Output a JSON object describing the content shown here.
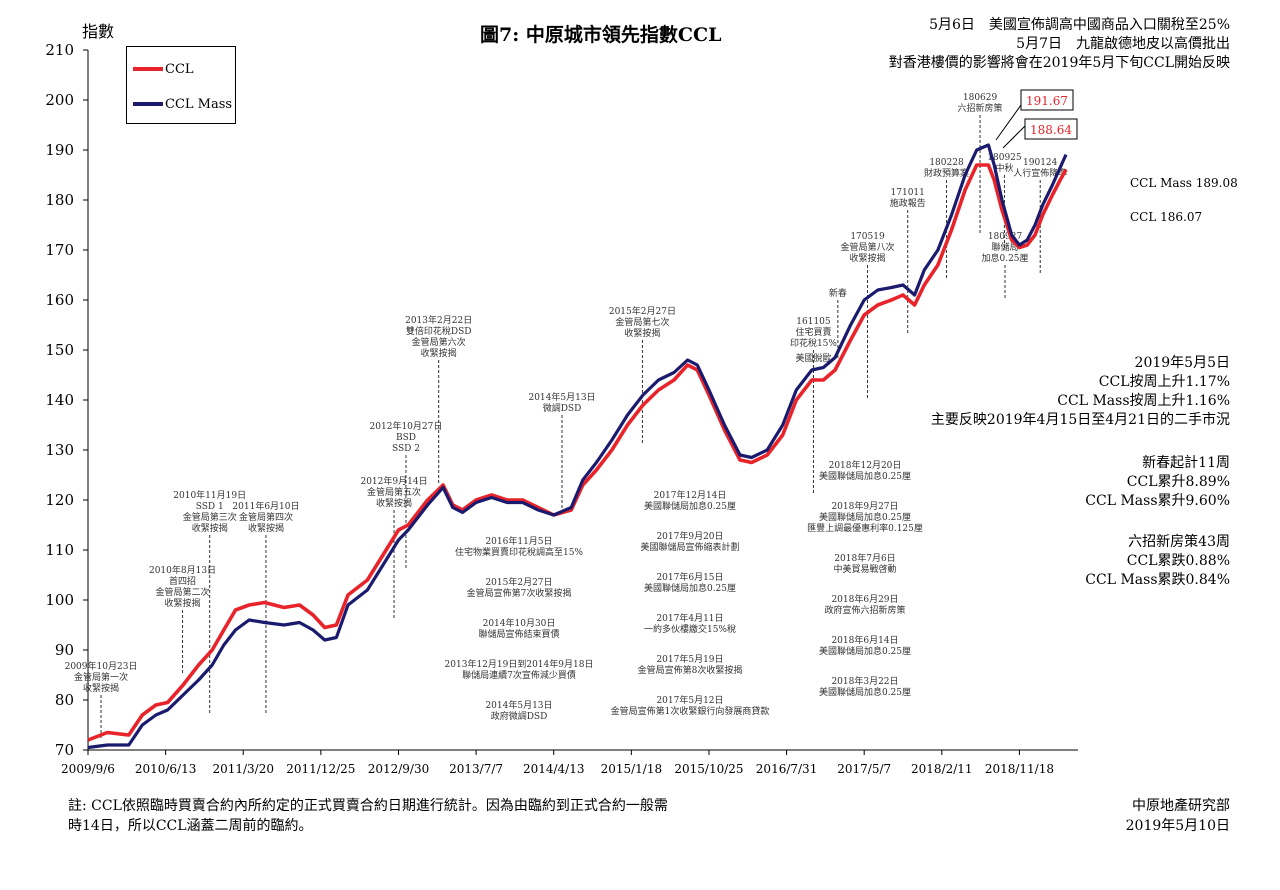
{
  "header": {
    "y_unit": "指數",
    "title": "圖7: 中原城市領先指數CCL",
    "note_lines": [
      "5月6日　美國宣佈調高中國商品入口關稅至25%",
      "5月7日　九龍啟德地皮以高價批出",
      "對香港樓價的影響將會在2019年5月下旬CCL開始反映"
    ]
  },
  "colors": {
    "ccl": "#e8232a",
    "ccl_mass": "#1a1a6e",
    "axis": "#000000",
    "annotation": "#333333"
  },
  "end_values": {
    "ccl_mass": "CCL Mass 189.08",
    "ccl": "CCL 186.07"
  },
  "peak_callouts": [
    "191.67",
    "188.64"
  ],
  "weekly_stats": [
    "2019年5月5日",
    "CCL按周上升1.17%",
    "CCL Mass按周上升1.16%",
    "主要反映2019年4月15日至4月21日的二手市況"
  ],
  "ytd_stats": [
    "新春起計11周",
    "CCL累升8.89%",
    "CCL Mass累升9.60%"
  ],
  "policy_stats": [
    "六招新房策43周",
    "CCL累跌0.88%",
    "CCL Mass累跌0.84%"
  ],
  "footnote": [
    "註: CCL依照臨時買賣合約內所約定的正式買賣合約日期進行統計。因為由臨約到正式合約一般需",
    "時14日，所以CCL涵蓋二周前的臨約。"
  ],
  "source": [
    "中原地產研究部",
    "2019年5月10日"
  ],
  "annotations": [
    {
      "x": "2009-10-23",
      "y_hi": 81,
      "y_lo": 72,
      "lines": [
        "2009年10月23日",
        "金管局第一次",
        "收緊按揭"
      ]
    },
    {
      "x": "2010-08-13",
      "y_hi": 98,
      "y_lo": 85,
      "lines": [
        "2010年8月13日",
        "首四招",
        "金管局第二次",
        "收緊按揭"
      ]
    },
    {
      "x": "2010-11-19",
      "y_hi": 113,
      "y_lo": 77,
      "lines": [
        "2010年11月19日",
        "SSD 1",
        "金管局第三次",
        "收緊按揭"
      ]
    },
    {
      "x": "2011-06-10",
      "y_hi": 113,
      "y_lo": 77,
      "lines": [
        "2011年6月10日",
        "金管局第四次",
        "收緊按揭"
      ]
    },
    {
      "x": "2012-09-14",
      "y_hi": 118,
      "y_lo": 96,
      "lines": [
        "2012年9月14日",
        "金管局第五次",
        "收緊按揭"
      ]
    },
    {
      "x": "2012-10-27",
      "y_hi": 129,
      "y_lo": 106,
      "lines": [
        "2012年10月27日",
        "BSD",
        "SSD 2"
      ]
    },
    {
      "x": "2013-02-22",
      "y_hi": 148,
      "y_lo": 123,
      "lines": [
        "2013年2月22日",
        "雙倍印花稅DSD",
        "金管局第六次",
        "收緊按揭"
      ]
    },
    {
      "x": "2014-05-13",
      "y_hi": 137,
      "y_lo": 118,
      "lines": [
        "2014年5月13日",
        "微調DSD"
      ]
    },
    {
      "x": "2015-02-27",
      "y_hi": 152,
      "y_lo": 131,
      "lines": [
        "2015年2月27日",
        "金管局第七次",
        "收緊按揭"
      ]
    },
    {
      "x": "2016-11-05",
      "y_hi": 147,
      "y_lo": 121,
      "lines": [
        "美國脫歐"
      ]
    },
    {
      "x": "2016-11-05",
      "y_hi": 150,
      "y_lo": 137,
      "lines": [
        "161105",
        "住宅買賣",
        "印花稅15%"
      ]
    },
    {
      "x": "2017-02-01",
      "y_hi": 160,
      "y_lo": 148,
      "lines": [
        "新春"
      ]
    },
    {
      "x": "2017-05-19",
      "y_hi": 167,
      "y_lo": 140,
      "lines": [
        "170519",
        "金管局第八次",
        "收緊按揭"
      ]
    },
    {
      "x": "2017-10-11",
      "y_hi": 178,
      "y_lo": 153,
      "lines": [
        "171011",
        "施政報告"
      ]
    },
    {
      "x": "2018-02-28",
      "y_hi": 184,
      "y_lo": 164,
      "lines": [
        "180228",
        "財政預算案"
      ]
    },
    {
      "x": "2018-06-29",
      "y_hi": 197,
      "y_lo": 173,
      "lines": [
        "180629",
        "六招新房策"
      ]
    },
    {
      "x": "2018-09-25",
      "y_hi": 185,
      "y_lo": 170,
      "lines": [
        "180925",
        "中秋"
      ]
    },
    {
      "x": "2018-09-27",
      "y_hi": 167,
      "y_lo": 160,
      "lines": [
        "180927",
        "聯儲局",
        "加息0.25厘"
      ]
    },
    {
      "x": "2019-02-01",
      "y_hi": 184,
      "y_lo": 165,
      "lines": [
        "190124",
        "人行宣佈降準"
      ]
    }
  ],
  "mid_notes_left": [
    [
      "2016年11月5日",
      "住宅物業買賣印花稅調高至15%"
    ],
    [
      "2015年2月27日",
      "金管局宣佈第7次收緊按揭"
    ],
    [
      "2014年10月30日",
      "聯儲局宣佈結束買債"
    ],
    [
      "2013年12月19日到2014年9月18日",
      "聯儲局連續7次宣佈減少買債"
    ],
    [
      "2014年5月13日",
      "政府微調DSD"
    ]
  ],
  "mid_notes_center": [
    [
      "2017年12月14日",
      "美國聯儲局加息0.25厘"
    ],
    [
      "2017年9月20日",
      "美國聯儲局宣佈縮表計劃"
    ],
    [
      "2017年6月15日",
      "美國聯儲局加息0.25厘"
    ],
    [
      "2017年4月11日",
      "一約多伙樓繳交15%稅"
    ],
    [
      "2017年5月19日",
      "金管局宣佈第8次收緊按揭"
    ],
    [
      "2017年5月12日",
      "金管局宣佈第1次收緊銀行向發展商貸款"
    ]
  ],
  "mid_notes_right": [
    [
      "2018年12月20日",
      "美國聯儲局加息0.25厘"
    ],
    [
      "2018年9月27日",
      "美國聯儲局加息0.25厘",
      "匯豐上調最優惠利率0.125厘"
    ],
    [
      "2018年7月6日",
      "中美貿易戰啓動"
    ],
    [
      "2018年6月29日",
      "政府宣佈六招新房策"
    ],
    [
      "2018年6月14日",
      "美國聯儲局加息0.25厘"
    ],
    [
      "2018年3月22日",
      "美國聯儲局加息0.25厘"
    ]
  ],
  "chart_data": {
    "type": "line",
    "title": "圖7: 中原城市領先指數CCL",
    "ylabel": "指數",
    "xlabel": "",
    "ylim": [
      70,
      210
    ],
    "y_ticks": [
      70,
      80,
      90,
      100,
      110,
      120,
      130,
      140,
      150,
      160,
      170,
      180,
      190,
      200,
      210
    ],
    "x_range": [
      "2009-09-06",
      "2019-05-05"
    ],
    "x_ticks": [
      "2009/9/6",
      "2010/6/13",
      "2011/3/20",
      "2011/12/25",
      "2012/9/30",
      "2013/7/7",
      "2014/4/13",
      "2015/1/18",
      "2015/10/25",
      "2016/7/31",
      "2017/5/7",
      "2018/2/11",
      "2018/11/18"
    ],
    "x_tick_dates": [
      "2009-09-06",
      "2010-06-13",
      "2011-03-20",
      "2011-12-25",
      "2012-09-30",
      "2013-07-07",
      "2014-04-13",
      "2015-01-18",
      "2015-10-25",
      "2016-07-31",
      "2017-05-07",
      "2018-02-11",
      "2018-11-18"
    ],
    "grid": false,
    "legend": "top-left",
    "series": [
      {
        "name": "CCL",
        "color": "#e8232a",
        "points": [
          [
            "2009-09-06",
            72
          ],
          [
            "2009-11-15",
            73.5
          ],
          [
            "2010-01-31",
            73
          ],
          [
            "2010-03-21",
            77
          ],
          [
            "2010-05-09",
            79
          ],
          [
            "2010-06-20",
            79.5
          ],
          [
            "2010-08-15",
            83
          ],
          [
            "2010-10-10",
            87
          ],
          [
            "2010-11-28",
            90
          ],
          [
            "2011-01-09",
            94
          ],
          [
            "2011-02-20",
            98
          ],
          [
            "2011-04-10",
            99
          ],
          [
            "2011-06-05",
            99.5
          ],
          [
            "2011-08-14",
            98.5
          ],
          [
            "2011-10-09",
            99
          ],
          [
            "2011-11-27",
            97
          ],
          [
            "2012-01-08",
            94.5
          ],
          [
            "2012-02-19",
            95
          ],
          [
            "2012-04-01",
            101
          ],
          [
            "2012-06-10",
            104
          ],
          [
            "2012-08-05",
            109
          ],
          [
            "2012-09-30",
            114
          ],
          [
            "2012-11-04",
            115
          ],
          [
            "2013-01-13",
            120
          ],
          [
            "2013-03-10",
            123
          ],
          [
            "2013-04-14",
            119
          ],
          [
            "2013-05-19",
            118
          ],
          [
            "2013-07-07",
            120
          ],
          [
            "2013-09-01",
            121
          ],
          [
            "2013-10-27",
            120
          ],
          [
            "2013-12-22",
            120
          ],
          [
            "2014-02-16",
            118.5
          ],
          [
            "2014-04-13",
            117
          ],
          [
            "2014-06-15",
            118
          ],
          [
            "2014-07-27",
            123
          ],
          [
            "2014-09-14",
            126
          ],
          [
            "2014-11-09",
            130
          ],
          [
            "2015-01-04",
            135
          ],
          [
            "2015-03-01",
            139
          ],
          [
            "2015-04-26",
            142
          ],
          [
            "2015-06-21",
            144
          ],
          [
            "2015-08-09",
            147
          ],
          [
            "2015-09-13",
            146
          ],
          [
            "2015-10-25",
            141
          ],
          [
            "2015-12-20",
            134
          ],
          [
            "2016-02-14",
            128
          ],
          [
            "2016-03-27",
            127.5
          ],
          [
            "2016-05-22",
            129
          ],
          [
            "2016-07-17",
            133
          ],
          [
            "2016-09-04",
            140
          ],
          [
            "2016-10-30",
            144
          ],
          [
            "2016-12-11",
            144
          ],
          [
            "2017-01-22",
            146
          ],
          [
            "2017-03-19",
            152
          ],
          [
            "2017-05-07",
            157
          ],
          [
            "2017-06-25",
            159
          ],
          [
            "2017-08-13",
            160
          ],
          [
            "2017-09-24",
            161
          ],
          [
            "2017-11-05",
            159
          ],
          [
            "2017-12-10",
            163
          ],
          [
            "2018-01-28",
            167
          ],
          [
            "2018-03-18",
            174
          ],
          [
            "2018-05-06",
            182
          ],
          [
            "2018-06-17",
            187
          ],
          [
            "2018-07-29",
            187
          ],
          [
            "2018-08-19",
            184
          ],
          [
            "2018-09-16",
            178
          ],
          [
            "2018-10-21",
            172
          ],
          [
            "2018-11-18",
            170.5
          ],
          [
            "2018-12-16",
            171
          ],
          [
            "2019-01-13",
            173
          ],
          [
            "2019-02-10",
            177
          ],
          [
            "2019-03-17",
            181
          ],
          [
            "2019-04-14",
            184
          ],
          [
            "2019-05-05",
            186.07
          ]
        ]
      },
      {
        "name": "CCL Mass",
        "color": "#1a1a6e",
        "points": [
          [
            "2009-09-06",
            70.5
          ],
          [
            "2009-11-15",
            71
          ],
          [
            "2010-01-31",
            71
          ],
          [
            "2010-03-21",
            75
          ],
          [
            "2010-05-09",
            77
          ],
          [
            "2010-06-20",
            78
          ],
          [
            "2010-08-15",
            81
          ],
          [
            "2010-10-10",
            84
          ],
          [
            "2010-11-28",
            87
          ],
          [
            "2011-01-09",
            91
          ],
          [
            "2011-02-20",
            94
          ],
          [
            "2011-04-10",
            96
          ],
          [
            "2011-06-05",
            95.5
          ],
          [
            "2011-08-14",
            95
          ],
          [
            "2011-10-09",
            95.5
          ],
          [
            "2011-11-27",
            94
          ],
          [
            "2012-01-08",
            92
          ],
          [
            "2012-02-19",
            92.5
          ],
          [
            "2012-04-01",
            99
          ],
          [
            "2012-06-10",
            102
          ],
          [
            "2012-08-05",
            107
          ],
          [
            "2012-09-30",
            112
          ],
          [
            "2012-11-04",
            114
          ],
          [
            "2013-01-13",
            119
          ],
          [
            "2013-03-10",
            122.5
          ],
          [
            "2013-04-14",
            118.5
          ],
          [
            "2013-05-19",
            117.5
          ],
          [
            "2013-07-07",
            119.5
          ],
          [
            "2013-09-01",
            120.5
          ],
          [
            "2013-10-27",
            119.5
          ],
          [
            "2013-12-22",
            119.5
          ],
          [
            "2014-02-16",
            118
          ],
          [
            "2014-04-13",
            117
          ],
          [
            "2014-06-15",
            118.5
          ],
          [
            "2014-07-27",
            124
          ],
          [
            "2014-09-14",
            127.5
          ],
          [
            "2014-11-09",
            132
          ],
          [
            "2015-01-04",
            137
          ],
          [
            "2015-03-01",
            141
          ],
          [
            "2015-04-26",
            144
          ],
          [
            "2015-06-21",
            145.5
          ],
          [
            "2015-08-09",
            148
          ],
          [
            "2015-09-13",
            147
          ],
          [
            "2015-10-25",
            142
          ],
          [
            "2015-12-20",
            135
          ],
          [
            "2016-02-14",
            129
          ],
          [
            "2016-03-27",
            128.5
          ],
          [
            "2016-05-22",
            130
          ],
          [
            "2016-07-17",
            135
          ],
          [
            "2016-09-04",
            142
          ],
          [
            "2016-10-30",
            146
          ],
          [
            "2016-12-11",
            146.5
          ],
          [
            "2017-01-22",
            148.5
          ],
          [
            "2017-03-19",
            155
          ],
          [
            "2017-05-07",
            160
          ],
          [
            "2017-06-25",
            162
          ],
          [
            "2017-08-13",
            162.5
          ],
          [
            "2017-09-24",
            163
          ],
          [
            "2017-11-05",
            161
          ],
          [
            "2017-12-10",
            166
          ],
          [
            "2018-01-28",
            170
          ],
          [
            "2018-03-18",
            177
          ],
          [
            "2018-05-06",
            185
          ],
          [
            "2018-06-17",
            190
          ],
          [
            "2018-07-29",
            191
          ],
          [
            "2018-08-19",
            187
          ],
          [
            "2018-09-16",
            180
          ],
          [
            "2018-10-21",
            173
          ],
          [
            "2018-11-18",
            171
          ],
          [
            "2018-12-16",
            172
          ],
          [
            "2019-01-13",
            175
          ],
          [
            "2019-02-10",
            179
          ],
          [
            "2019-03-17",
            183
          ],
          [
            "2019-04-14",
            186.5
          ],
          [
            "2019-05-05",
            189.08
          ]
        ]
      }
    ]
  }
}
